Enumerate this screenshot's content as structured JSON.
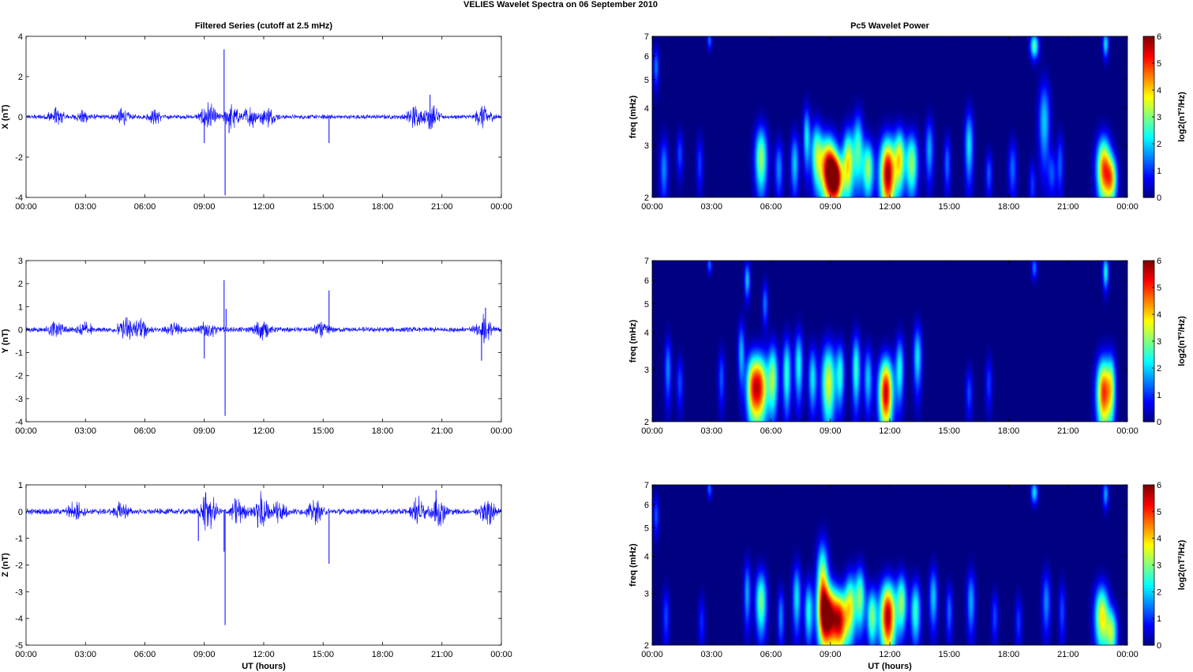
{
  "figure": {
    "title": "VELIES Wavelet Spectra on 06 September 2010",
    "left_title": "Filtered Series (cutoff at 2.5 mHz)",
    "right_title": "Pc5 Wavelet Power",
    "xlabel": "UT (hours)"
  },
  "colors": {
    "trace": "#0000ff",
    "colormap": "jet",
    "background": "#00008f"
  },
  "chart_data": [
    {
      "type": "line",
      "ylabel": "X (nT)",
      "x_ticks": [
        "00:00",
        "03:00",
        "06:00",
        "09:00",
        "12:00",
        "15:00",
        "18:00",
        "21:00",
        "00:00"
      ],
      "xlim": [
        0,
        24
      ],
      "ylim": [
        -4,
        4
      ],
      "y_ticks": [
        -4,
        -2,
        0,
        2,
        4
      ],
      "base_amplitude": 0.12,
      "bursts": [
        [
          1.5,
          0.5
        ],
        [
          2.9,
          0.3
        ],
        [
          4.9,
          0.4
        ],
        [
          6.5,
          0.3
        ],
        [
          9.2,
          0.7
        ],
        [
          10.4,
          0.6
        ],
        [
          11.3,
          0.55
        ],
        [
          12.2,
          0.45
        ],
        [
          19.6,
          0.5
        ],
        [
          20.5,
          0.7
        ],
        [
          23.1,
          0.6
        ]
      ],
      "spikes": [
        [
          9.0,
          -1.3
        ],
        [
          10.0,
          3.35
        ],
        [
          10.05,
          -3.9
        ],
        [
          10.25,
          -0.8
        ],
        [
          15.3,
          -1.3
        ],
        [
          20.4,
          1.1
        ]
      ]
    },
    {
      "type": "line",
      "ylabel": "Y (nT)",
      "x_ticks": [
        "00:00",
        "03:00",
        "06:00",
        "09:00",
        "12:00",
        "15:00",
        "18:00",
        "21:00",
        "00:00"
      ],
      "xlim": [
        0,
        24
      ],
      "ylim": [
        -4,
        3
      ],
      "y_ticks": [
        -4,
        -3,
        -2,
        -1,
        0,
        1,
        2,
        3
      ],
      "base_amplitude": 0.12,
      "bursts": [
        [
          1.5,
          0.4
        ],
        [
          3.0,
          0.3
        ],
        [
          5.0,
          0.6
        ],
        [
          5.8,
          0.5
        ],
        [
          7.5,
          0.3
        ],
        [
          9.2,
          0.4
        ],
        [
          11.9,
          0.45
        ],
        [
          14.9,
          0.3
        ],
        [
          23.1,
          0.7
        ]
      ],
      "spikes": [
        [
          9.0,
          -1.25
        ],
        [
          10.0,
          2.15
        ],
        [
          10.05,
          -3.75
        ],
        [
          10.1,
          0.9
        ],
        [
          15.3,
          1.7
        ],
        [
          23.0,
          -1.35
        ],
        [
          23.2,
          0.95
        ]
      ]
    },
    {
      "type": "line",
      "ylabel": "Z (nT)",
      "x_ticks": [
        "00:00",
        "03:00",
        "06:00",
        "09:00",
        "12:00",
        "15:00",
        "18:00",
        "21:00",
        "00:00"
      ],
      "xlim": [
        0,
        24
      ],
      "ylim": [
        -5,
        1
      ],
      "y_ticks": [
        -5,
        -4,
        -3,
        -2,
        -1,
        0,
        1
      ],
      "base_amplitude": 0.12,
      "bursts": [
        [
          2.5,
          0.35
        ],
        [
          4.8,
          0.3
        ],
        [
          9.2,
          0.85
        ],
        [
          10.7,
          0.5
        ],
        [
          11.9,
          0.7
        ],
        [
          12.8,
          0.45
        ],
        [
          14.6,
          0.4
        ],
        [
          19.8,
          0.5
        ],
        [
          20.8,
          0.6
        ],
        [
          23.3,
          0.55
        ]
      ],
      "spikes": [
        [
          8.7,
          -1.1
        ],
        [
          10.0,
          -1.5
        ],
        [
          10.05,
          -4.25
        ],
        [
          11.7,
          -0.6
        ],
        [
          15.3,
          -1.95
        ],
        [
          20.7,
          0.8
        ]
      ]
    },
    {
      "type": "heatmap",
      "ylabel": "freq (mHz)",
      "x_ticks": [
        "00:00",
        "03:00",
        "06:00",
        "09:00",
        "12:00",
        "15:00",
        "18:00",
        "21:00",
        "00:00"
      ],
      "y_ticks": [
        2,
        3,
        4,
        5,
        6,
        7
      ],
      "ylim": [
        2,
        7
      ],
      "yscale": "log",
      "clim": [
        0,
        6
      ],
      "colorbar_label": "log2(nT²/Hz)",
      "colorbar_ticks": [
        0,
        1,
        2,
        3,
        4,
        5,
        6
      ],
      "blobs": [
        [
          0.6,
          2.5,
          0.15,
          0.45,
          1.6
        ],
        [
          1.4,
          2.8,
          0.12,
          0.35,
          1.2
        ],
        [
          2.4,
          2.6,
          0.12,
          0.4,
          1.1
        ],
        [
          5.5,
          2.7,
          0.22,
          0.5,
          3.2
        ],
        [
          6.4,
          2.5,
          0.15,
          0.4,
          1.6
        ],
        [
          7.2,
          2.6,
          0.15,
          0.45,
          2.0
        ],
        [
          7.8,
          3.2,
          0.12,
          0.55,
          2.2
        ],
        [
          8.3,
          2.8,
          0.2,
          0.5,
          2.8
        ],
        [
          8.9,
          2.5,
          0.3,
          0.45,
          5.6
        ],
        [
          9.3,
          2.3,
          0.25,
          0.3,
          5.0
        ],
        [
          9.9,
          2.6,
          0.2,
          0.5,
          3.8
        ],
        [
          10.4,
          2.9,
          0.18,
          0.6,
          2.6
        ],
        [
          10.9,
          2.5,
          0.2,
          0.4,
          3.2
        ],
        [
          11.9,
          2.4,
          0.28,
          0.5,
          5.9
        ],
        [
          12.5,
          2.7,
          0.18,
          0.45,
          3.5
        ],
        [
          13.1,
          2.6,
          0.22,
          0.45,
          3.2
        ],
        [
          14.0,
          2.9,
          0.15,
          0.5,
          1.8
        ],
        [
          14.9,
          2.6,
          0.12,
          0.4,
          1.4
        ],
        [
          16.0,
          3.0,
          0.15,
          0.6,
          2.2
        ],
        [
          17.0,
          2.4,
          0.12,
          0.3,
          1.3
        ],
        [
          18.2,
          2.5,
          0.15,
          0.4,
          1.4
        ],
        [
          19.2,
          2.2,
          0.12,
          0.3,
          1.1
        ],
        [
          19.8,
          3.6,
          0.2,
          0.85,
          2.0
        ],
        [
          20.2,
          2.4,
          0.15,
          0.3,
          1.2
        ],
        [
          20.6,
          2.6,
          0.12,
          0.45,
          1.3
        ],
        [
          22.8,
          2.5,
          0.25,
          0.45,
          4.6
        ],
        [
          23.2,
          2.3,
          0.2,
          0.3,
          3.4
        ],
        [
          0.2,
          5.5,
          0.1,
          0.6,
          1.5
        ],
        [
          2.9,
          6.8,
          0.08,
          0.35,
          1.5
        ],
        [
          19.3,
          6.5,
          0.15,
          0.45,
          2.8
        ],
        [
          22.9,
          6.6,
          0.1,
          0.5,
          2.2
        ]
      ]
    },
    {
      "type": "heatmap",
      "ylabel": "freq (mHz)",
      "x_ticks": [
        "00:00",
        "03:00",
        "06:00",
        "09:00",
        "12:00",
        "15:00",
        "18:00",
        "21:00",
        "00:00"
      ],
      "y_ticks": [
        2,
        3,
        4,
        5,
        6,
        7
      ],
      "ylim": [
        2,
        7
      ],
      "yscale": "log",
      "clim": [
        0,
        6
      ],
      "colorbar_label": "log2(nT²/Hz)",
      "colorbar_ticks": [
        0,
        1,
        2,
        3,
        4,
        5,
        6
      ],
      "blobs": [
        [
          0.8,
          3.0,
          0.12,
          0.55,
          1.6
        ],
        [
          1.4,
          2.7,
          0.12,
          0.4,
          1.2
        ],
        [
          3.5,
          2.8,
          0.12,
          0.45,
          1.3
        ],
        [
          4.5,
          3.4,
          0.12,
          0.6,
          1.9
        ],
        [
          5.0,
          2.6,
          0.2,
          0.5,
          2.4
        ],
        [
          5.4,
          2.6,
          0.3,
          0.5,
          5.2
        ],
        [
          6.1,
          2.8,
          0.18,
          0.55,
          3.0
        ],
        [
          6.8,
          2.9,
          0.15,
          0.6,
          2.6
        ],
        [
          7.4,
          3.1,
          0.15,
          0.6,
          2.4
        ],
        [
          8.1,
          2.8,
          0.15,
          0.5,
          2.2
        ],
        [
          8.9,
          2.7,
          0.25,
          0.6,
          3.6
        ],
        [
          9.5,
          2.9,
          0.15,
          0.5,
          2.4
        ],
        [
          10.3,
          3.0,
          0.15,
          0.6,
          2.6
        ],
        [
          10.9,
          2.8,
          0.15,
          0.5,
          2.0
        ],
        [
          11.8,
          2.5,
          0.25,
          0.5,
          5.6
        ],
        [
          12.5,
          3.0,
          0.15,
          0.55,
          2.4
        ],
        [
          13.4,
          3.3,
          0.15,
          0.6,
          2.2
        ],
        [
          16.0,
          2.5,
          0.12,
          0.35,
          1.2
        ],
        [
          17.0,
          2.7,
          0.12,
          0.4,
          1.1
        ],
        [
          22.8,
          2.5,
          0.25,
          0.5,
          5.0
        ],
        [
          23.2,
          2.6,
          0.15,
          0.5,
          2.4
        ],
        [
          2.9,
          6.8,
          0.08,
          0.35,
          1.5
        ],
        [
          4.8,
          6.0,
          0.1,
          0.6,
          2.0
        ],
        [
          5.7,
          5.0,
          0.1,
          0.6,
          1.5
        ],
        [
          19.3,
          6.6,
          0.1,
          0.4,
          1.5
        ],
        [
          22.9,
          6.4,
          0.1,
          0.6,
          2.4
        ]
      ]
    },
    {
      "type": "heatmap",
      "ylabel": "freq (mHz)",
      "x_ticks": [
        "00:00",
        "03:00",
        "06:00",
        "09:00",
        "12:00",
        "15:00",
        "18:00",
        "21:00",
        "00:00"
      ],
      "y_ticks": [
        2,
        3,
        4,
        5,
        6,
        7
      ],
      "ylim": [
        2,
        7
      ],
      "yscale": "log",
      "clim": [
        0,
        6
      ],
      "colorbar_label": "log2(nT²/Hz)",
      "colorbar_ticks": [
        0,
        1,
        2,
        3,
        4,
        5,
        6
      ],
      "blobs": [
        [
          0.7,
          2.5,
          0.12,
          0.4,
          1.2
        ],
        [
          2.5,
          2.4,
          0.12,
          0.35,
          1.0
        ],
        [
          4.8,
          3.0,
          0.12,
          0.55,
          1.8
        ],
        [
          5.5,
          2.8,
          0.2,
          0.5,
          3.0
        ],
        [
          6.5,
          2.5,
          0.12,
          0.4,
          1.6
        ],
        [
          7.3,
          2.9,
          0.15,
          0.55,
          2.2
        ],
        [
          7.9,
          2.6,
          0.15,
          0.45,
          2.4
        ],
        [
          8.6,
          3.2,
          0.2,
          0.8,
          3.6
        ],
        [
          8.9,
          2.5,
          0.32,
          0.45,
          5.8
        ],
        [
          9.5,
          2.4,
          0.25,
          0.4,
          4.6
        ],
        [
          10.0,
          2.7,
          0.2,
          0.5,
          3.4
        ],
        [
          10.5,
          2.9,
          0.18,
          0.5,
          3.0
        ],
        [
          11.1,
          2.5,
          0.18,
          0.4,
          3.0
        ],
        [
          11.9,
          2.5,
          0.28,
          0.5,
          5.8
        ],
        [
          12.6,
          2.8,
          0.18,
          0.45,
          3.0
        ],
        [
          13.3,
          2.6,
          0.18,
          0.45,
          2.6
        ],
        [
          14.2,
          2.9,
          0.15,
          0.5,
          2.0
        ],
        [
          15.0,
          2.6,
          0.12,
          0.4,
          1.4
        ],
        [
          16.1,
          2.8,
          0.15,
          0.5,
          1.8
        ],
        [
          17.3,
          2.5,
          0.12,
          0.35,
          1.2
        ],
        [
          18.5,
          2.4,
          0.12,
          0.35,
          1.1
        ],
        [
          19.9,
          2.8,
          0.15,
          0.5,
          1.6
        ],
        [
          20.7,
          2.6,
          0.12,
          0.45,
          1.2
        ],
        [
          22.7,
          2.5,
          0.25,
          0.45,
          3.8
        ],
        [
          23.2,
          2.2,
          0.2,
          0.3,
          3.0
        ],
        [
          0.2,
          5.5,
          0.1,
          0.6,
          1.3
        ],
        [
          2.9,
          6.8,
          0.08,
          0.35,
          1.5
        ],
        [
          19.3,
          6.6,
          0.12,
          0.4,
          2.2
        ],
        [
          22.9,
          6.5,
          0.1,
          0.5,
          1.8
        ]
      ]
    }
  ]
}
